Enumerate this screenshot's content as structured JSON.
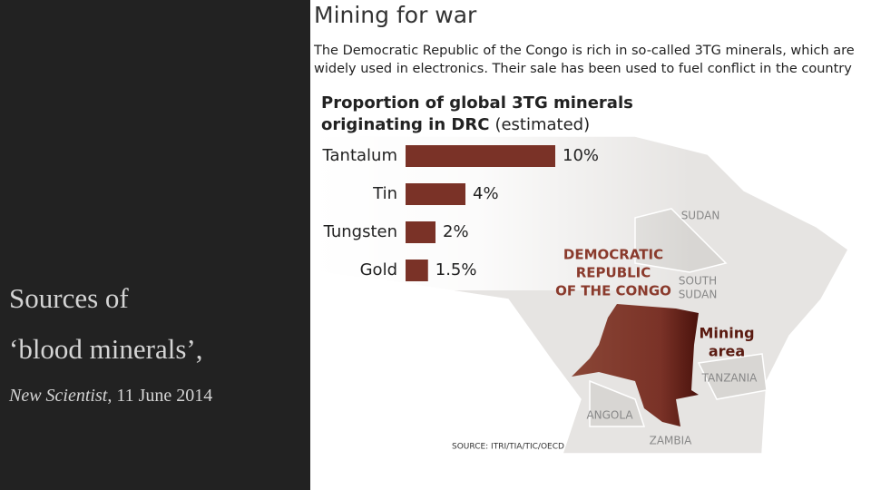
{
  "slide": {
    "caption_lines": [
      "Sources of",
      "‘blood minerals’,"
    ],
    "citation": {
      "publication": "New Scientist",
      "rest": ", 11 June 2014"
    }
  },
  "header": {
    "title": "Mining for war",
    "description": [
      "The Democratic Republic of the Congo is rich in so-called 3TG minerals, which are",
      "widely used in electronics. Their sale has been used to fuel conflict in the country"
    ]
  },
  "chart_data": {
    "type": "bar",
    "orientation": "horizontal",
    "title": [
      "Proportion of global 3TG minerals",
      "originating in DRC"
    ],
    "title_note": "(estimated)",
    "categories": [
      "Tantalum",
      "Tin",
      "Tungsten",
      "Gold"
    ],
    "values": [
      10,
      4,
      2,
      1.5
    ],
    "value_labels": [
      "10%",
      "4%",
      "2%",
      "1.5%"
    ],
    "color": "#7a3227",
    "annotations": [
      {
        "lines": [
          "SUDAN"
        ]
      },
      {
        "lines": [
          "DEMOCRATIC",
          "REPUBLIC",
          "OF THE CONGO"
        ]
      },
      {
        "lines": [
          "SOUTH",
          "SUDAN"
        ]
      },
      {
        "lines": [
          "Mining",
          "area"
        ]
      },
      {
        "lines": [
          "TANZANIA"
        ]
      },
      {
        "lines": [
          "ANGOLA"
        ]
      },
      {
        "lines": [
          "ZAMBIA"
        ]
      }
    ],
    "source": "SOURCE: ITRI/TIA/TIC/OECD"
  }
}
